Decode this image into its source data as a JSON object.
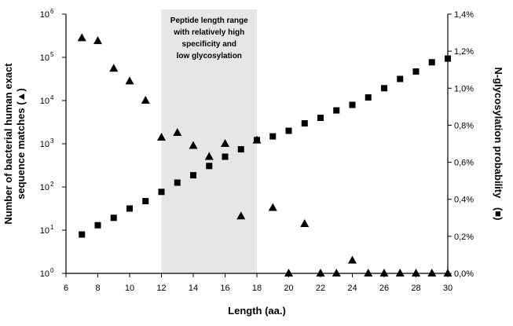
{
  "chart_data": {
    "type": "scatter",
    "xlabel": "Length (aa.)",
    "ylabel_left_lines": [
      "Number of bacterial  human exact",
      "sequence matches (▲)"
    ],
    "ylabel_right_text": "N-glycosylation probability",
    "ylabel_right_marker": "(■)",
    "xlim": [
      6,
      30
    ],
    "x_ticks": [
      6,
      8,
      10,
      12,
      14,
      16,
      18,
      20,
      22,
      24,
      26,
      28,
      30
    ],
    "y_left_scale": "log",
    "y_left_lim": [
      1,
      1000000
    ],
    "y_left_ticks": [
      {
        "base": "10",
        "exp": "0"
      },
      {
        "base": "10",
        "exp": "1"
      },
      {
        "base": "10",
        "exp": "2"
      },
      {
        "base": "10",
        "exp": "3"
      },
      {
        "base": "10",
        "exp": "4"
      },
      {
        "base": "10",
        "exp": "5"
      },
      {
        "base": "10",
        "exp": "6"
      }
    ],
    "y_right_lim": [
      0.0,
      1.4
    ],
    "y_right_ticks": [
      "0,0%",
      "0,2%",
      "0,4%",
      "0,6%",
      "0,8%",
      "1,0%",
      "1,2%",
      "1,4%"
    ],
    "grid": false,
    "shaded_region": {
      "x_range": [
        12,
        18
      ],
      "label_lines": [
        "Peptide length range",
        "with relatively high",
        "specificity and",
        "low glycosylation"
      ],
      "color": "#e6e6e6"
    },
    "series": [
      {
        "marker": "triangle",
        "axis": "left",
        "color": "#000000",
        "points": [
          {
            "x": 7,
            "y": 280000
          },
          {
            "x": 8,
            "y": 240000
          },
          {
            "x": 9,
            "y": 55000
          },
          {
            "x": 10,
            "y": 28000
          },
          {
            "x": 11,
            "y": 10000
          },
          {
            "x": 12,
            "y": 1400
          },
          {
            "x": 13,
            "y": 1800
          },
          {
            "x": 14,
            "y": 900
          },
          {
            "x": 15,
            "y": 500
          },
          {
            "x": 16,
            "y": 1000
          },
          {
            "x": 17,
            "y": 21
          },
          {
            "x": 18,
            "y": 1200
          },
          {
            "x": 19,
            "y": 33
          },
          {
            "x": 20,
            "y": 1
          },
          {
            "x": 21,
            "y": 14
          },
          {
            "x": 22,
            "y": 1
          },
          {
            "x": 23,
            "y": 1
          },
          {
            "x": 24,
            "y": 2
          },
          {
            "x": 25,
            "y": 1
          },
          {
            "x": 26,
            "y": 1
          },
          {
            "x": 27,
            "y": 1
          },
          {
            "x": 28,
            "y": 1
          },
          {
            "x": 29,
            "y": 1
          },
          {
            "x": 30,
            "y": 1
          }
        ]
      },
      {
        "marker": "square",
        "axis": "right",
        "color": "#000000",
        "points": [
          {
            "x": 7,
            "y": 0.21
          },
          {
            "x": 8,
            "y": 0.26
          },
          {
            "x": 9,
            "y": 0.3
          },
          {
            "x": 10,
            "y": 0.35
          },
          {
            "x": 11,
            "y": 0.39
          },
          {
            "x": 12,
            "y": 0.44
          },
          {
            "x": 13,
            "y": 0.49
          },
          {
            "x": 14,
            "y": 0.53
          },
          {
            "x": 15,
            "y": 0.58
          },
          {
            "x": 16,
            "y": 0.63
          },
          {
            "x": 17,
            "y": 0.67
          },
          {
            "x": 18,
            "y": 0.72
          },
          {
            "x": 19,
            "y": 0.74
          },
          {
            "x": 20,
            "y": 0.77
          },
          {
            "x": 21,
            "y": 0.81
          },
          {
            "x": 22,
            "y": 0.84
          },
          {
            "x": 23,
            "y": 0.88
          },
          {
            "x": 24,
            "y": 0.91
          },
          {
            "x": 25,
            "y": 0.95
          },
          {
            "x": 26,
            "y": 1.0
          },
          {
            "x": 27,
            "y": 1.05
          },
          {
            "x": 28,
            "y": 1.09
          },
          {
            "x": 29,
            "y": 1.14
          },
          {
            "x": 30,
            "y": 1.16
          }
        ]
      }
    ]
  }
}
